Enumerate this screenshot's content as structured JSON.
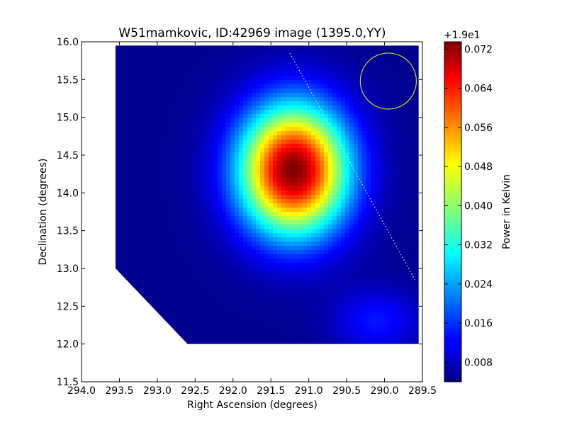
{
  "chart_data": {
    "type": "heatmap",
    "title": "W51mamkovic, ID:42969 image (1395.0,YY)",
    "xlabel": "Right Ascension (degrees)",
    "ylabel": "Declination (degrees)",
    "xlim": [
      294.0,
      289.5
    ],
    "ylim": [
      11.5,
      16.0
    ],
    "x_ticks": [
      "294.0",
      "293.5",
      "293.0",
      "292.5",
      "292.0",
      "291.5",
      "291.0",
      "290.5",
      "290.0",
      "289.5"
    ],
    "y_ticks": [
      "11.5",
      "12.0",
      "12.5",
      "13.0",
      "13.5",
      "14.0",
      "14.5",
      "15.0",
      "15.5",
      "16.0"
    ],
    "colorbar": {
      "label": "Power in Kelvin",
      "offset_label": "+1.9e1",
      "range": [
        0.004,
        0.0735
      ],
      "ticks": [
        "0.008",
        "0.016",
        "0.024",
        "0.032",
        "0.040",
        "0.048",
        "0.056",
        "0.064",
        "0.072"
      ],
      "colormap": "jet"
    },
    "image_region": [
      {
        "ra": 293.55,
        "dec": 15.95
      },
      {
        "ra": 289.55,
        "dec": 15.95
      },
      {
        "ra": 289.55,
        "dec": 12.0
      },
      {
        "ra": 292.6,
        "dec": 12.0
      },
      {
        "ra": 293.55,
        "dec": 13.0
      }
    ],
    "sources": [
      {
        "ra": 291.2,
        "dec": 14.3,
        "peak": 0.0735,
        "sigma_ra": 0.5,
        "sigma_dec": 0.6
      },
      {
        "ra": 290.1,
        "dec": 12.3,
        "peak": 0.014,
        "sigma_ra": 0.4,
        "sigma_dec": 0.3
      }
    ],
    "background": 0.005,
    "annotations": {
      "circle": {
        "ra": 289.95,
        "dec": 15.48,
        "radius_deg": 0.37,
        "color": "#d4d42b"
      },
      "dotted_line": [
        {
          "ra": 291.25,
          "dec": 15.85
        },
        {
          "ra": 289.6,
          "dec": 12.85
        }
      ],
      "dotted_line_color": "#e8e8a0"
    }
  }
}
